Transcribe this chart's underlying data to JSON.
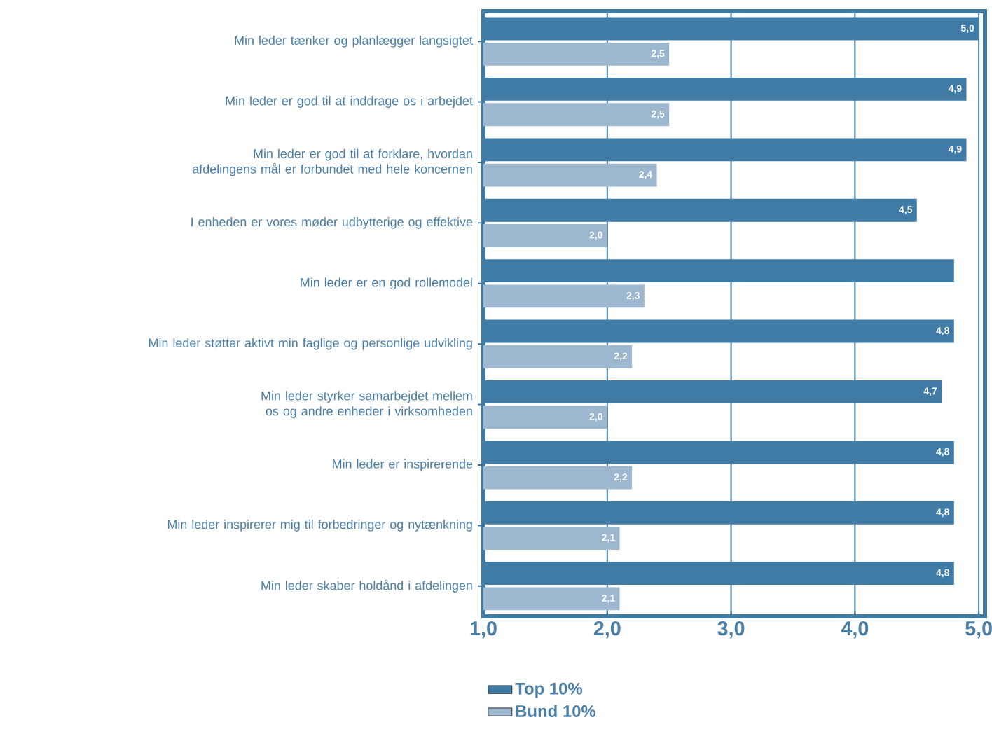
{
  "chart_data": {
    "type": "bar",
    "orientation": "horizontal",
    "categories": [
      "Min leder tænker og planlægger langsigtet",
      "Min leder er god til at inddrage os i arbejdet",
      "Min leder er god til at forklare, hvordan afdelingens mål er forbundet med hele koncernen",
      "I enheden er vores møder udbytterige og effektive",
      "Min leder er en god rollemodel",
      "Min leder støtter aktivt min faglige og personlige udvikling",
      "Min leder styrker samarbejdet mellem os og andre enheder i virksomheden",
      "Min leder er inspirerende",
      "Min leder inspirerer mig til forbedringer og nytænkning",
      "Min leder skaber holdånd i afdelingen"
    ],
    "series": [
      {
        "name": "Top 10%",
        "color": "#3f7ba5",
        "values": [
          5.0,
          4.9,
          4.9,
          4.5,
          4.8,
          4.8,
          4.7,
          4.8,
          4.8,
          4.8
        ],
        "value_labels": [
          "5,0",
          "4,9",
          "4,9",
          "4,5",
          null,
          "4,8",
          "4,7",
          "4,8",
          "4,8",
          "4,8"
        ]
      },
      {
        "name": "Bund 10%",
        "color": "#9db7cf",
        "values": [
          2.5,
          2.5,
          2.4,
          2.0,
          2.3,
          2.2,
          2.0,
          2.2,
          2.1,
          2.1
        ],
        "value_labels": [
          "2,5",
          "2,5",
          "2,4",
          "2,0",
          "2,3",
          "2,2",
          "2,0",
          "2,2",
          "2,1",
          "2,1"
        ]
      }
    ],
    "xlim": [
      1,
      5.05
    ],
    "xticks": [
      {
        "value": 1,
        "label": "1,0"
      },
      {
        "value": 2,
        "label": "2,0"
      },
      {
        "value": 3,
        "label": "3,0"
      },
      {
        "value": 4,
        "label": "4,0"
      },
      {
        "value": 5,
        "label": "5,0"
      }
    ],
    "grid": "x",
    "legend": "bottom left"
  }
}
